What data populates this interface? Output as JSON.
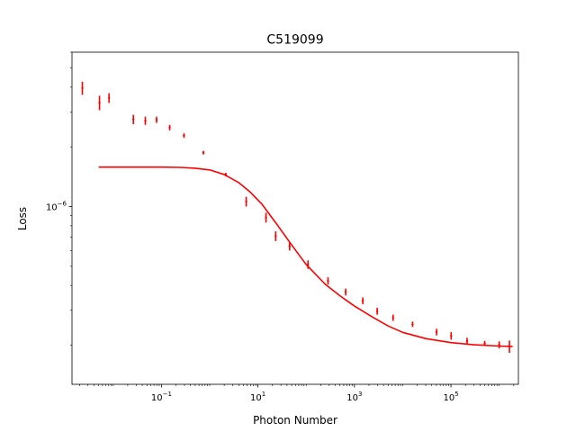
{
  "chart_data": {
    "type": "scatter",
    "title": "C519099",
    "xlabel": "Photon Number",
    "ylabel": "Loss",
    "xscale": "log",
    "yscale": "log",
    "xlim": [
      0.0014,
      2500000
    ],
    "ylim": [
      1.27e-07,
      6e-06
    ],
    "x_ticks": [
      {
        "value": 0.1,
        "base": "10",
        "exp": "−1"
      },
      {
        "value": 10,
        "base": "10",
        "exp": "1"
      },
      {
        "value": 1000,
        "base": "10",
        "exp": "3"
      },
      {
        "value": 100000,
        "base": "10",
        "exp": "5"
      }
    ],
    "y_ticks": [
      {
        "value": 1e-06,
        "base": "10",
        "exp": "−6"
      }
    ],
    "grid": false,
    "color": "#ff0000",
    "series": [
      {
        "kind": "errorbar",
        "x": [
          0.0023,
          0.0052,
          0.0082,
          0.0262,
          0.0464,
          0.0791,
          0.148,
          0.293,
          0.74,
          2.15,
          5.72,
          14.7,
          23.3,
          45.3,
          109,
          283,
          658,
          1490,
          2960,
          6320,
          16000,
          50400,
          101000,
          216000,
          500000,
          1000000,
          1630000
        ],
        "y": [
          3.96e-06,
          3.34e-06,
          3.53e-06,
          2.75e-06,
          2.71e-06,
          2.74e-06,
          2.5e-06,
          2.28e-06,
          1.87e-06,
          1.45e-06,
          1.06e-06,
          8.8e-07,
          7.1e-07,
          6.3e-07,
          5.1e-07,
          4.22e-07,
          3.71e-07,
          3.35e-07,
          2.97e-07,
          2.75e-07,
          2.55e-07,
          2.33e-07,
          2.23e-07,
          2.1e-07,
          2.04e-07,
          2.01e-07,
          1.97e-07
        ],
        "yerr": [
          3e-07,
          2.8e-07,
          2e-07,
          1.5e-07,
          1.3e-07,
          1e-07,
          8e-08,
          6e-08,
          4e-08,
          3e-08,
          6e-08,
          5e-08,
          4e-08,
          3e-08,
          2.5e-08,
          1.8e-08,
          1.5e-08,
          1.3e-08,
          1.2e-08,
          1e-08,
          8e-09,
          9e-09,
          1e-08,
          8e-09,
          6e-09,
          8e-09,
          1.4e-08
        ]
      },
      {
        "kind": "line",
        "x": [
          0.005,
          0.03,
          0.1,
          0.25,
          0.5,
          1.0,
          2.0,
          4.0,
          7.0,
          12,
          25,
          50,
          100,
          250,
          500,
          1000,
          2500,
          5000,
          10000,
          30000,
          100000,
          300000,
          1000000,
          1900000
        ],
        "y": [
          1.58e-06,
          1.58e-06,
          1.58e-06,
          1.575e-06,
          1.56e-06,
          1.53e-06,
          1.45e-06,
          1.32e-06,
          1.18e-06,
          1.03e-06,
          8.1e-07,
          6.4e-07,
          5.1e-07,
          4.05e-07,
          3.55e-07,
          3.15e-07,
          2.75e-07,
          2.5e-07,
          2.32e-07,
          2.16e-07,
          2.06e-07,
          2.01e-07,
          1.98e-07,
          1.97e-07
        ]
      }
    ]
  }
}
